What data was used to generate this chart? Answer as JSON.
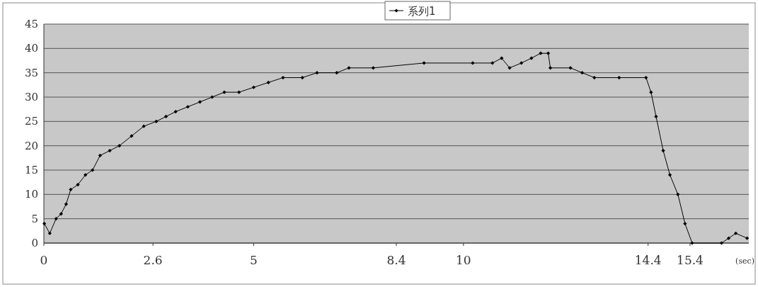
{
  "chart_data": {
    "type": "line",
    "xlabel": "(sec)",
    "x": [
      0.01,
      0.14,
      0.29,
      0.41,
      0.53,
      0.64,
      0.81,
      0.99,
      1.16,
      1.34,
      1.57,
      1.8,
      2.09,
      2.38,
      2.68,
      2.91,
      3.14,
      3.43,
      3.72,
      4.01,
      4.3,
      4.65,
      5.0,
      5.35,
      5.7,
      6.16,
      6.51,
      6.98,
      7.27,
      7.85,
      9.06,
      10.22,
      10.69,
      10.91,
      11.1,
      11.38,
      11.62,
      11.84,
      12.02,
      12.07,
      12.55,
      12.83,
      13.12,
      13.71,
      14.35,
      14.47,
      14.59,
      14.76,
      14.92,
      15.11,
      15.28,
      15.45,
      16.15,
      16.32,
      16.49,
      16.76
    ],
    "series": [
      {
        "name": "系列1",
        "color": "#000000",
        "values": [
          4,
          2,
          5,
          6,
          8,
          11,
          12,
          14,
          15,
          18,
          19,
          20,
          22,
          24,
          25,
          26,
          27,
          28,
          29,
          30,
          31,
          31,
          32,
          33,
          34,
          34,
          35,
          35,
          36,
          36,
          37,
          37,
          37,
          38,
          36,
          37,
          38,
          39,
          39,
          36,
          36,
          35,
          34,
          34,
          34,
          31,
          26,
          19,
          14,
          10,
          4,
          0,
          0,
          1,
          2,
          1
        ]
      }
    ],
    "xlim": [
      0,
      16.8
    ],
    "xticks": [
      0,
      2.6,
      5,
      8.4,
      10,
      14.4,
      15.4
    ],
    "ylim": [
      0,
      45
    ],
    "yticks": [
      0,
      5,
      10,
      15,
      20,
      25,
      30,
      35,
      40,
      45
    ],
    "grid": "y",
    "legend": "top",
    "marker": "diamond",
    "line_style": "solid"
  }
}
